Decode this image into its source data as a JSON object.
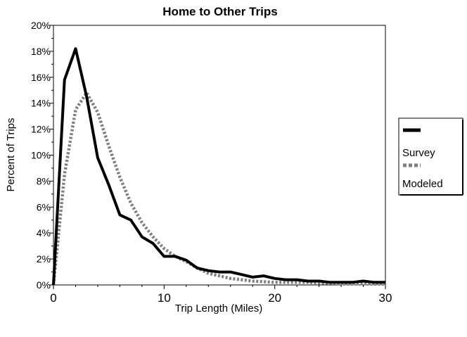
{
  "chart_data": {
    "type": "line",
    "title": "Home to Other Trips",
    "xlabel": "Trip Length (Miles)",
    "ylabel": "Percent of Trips",
    "xlim": [
      0,
      30
    ],
    "ylim": [
      0,
      20
    ],
    "x_ticks": [
      0,
      10,
      20,
      30
    ],
    "x_tick_labels": [
      "0",
      "10",
      "20",
      "30"
    ],
    "y_ticks": [
      0,
      2,
      4,
      6,
      8,
      10,
      12,
      14,
      16,
      18,
      20
    ],
    "y_tick_labels": [
      "0%",
      "2%",
      "4%",
      "6%",
      "8%",
      "10%",
      "12%",
      "14%",
      "16%",
      "18%",
      "20%"
    ],
    "grid": false,
    "legend_position": "right",
    "series": [
      {
        "name": "Survey",
        "style": "solid",
        "color": "#000000",
        "x": [
          0,
          1,
          2,
          3,
          4,
          5,
          6,
          7,
          8,
          9,
          10,
          11,
          12,
          13,
          14,
          15,
          16,
          17,
          18,
          19,
          20,
          21,
          22,
          23,
          24,
          25,
          26,
          27,
          28,
          29,
          30
        ],
        "values": [
          0,
          15.8,
          18.2,
          14.5,
          9.8,
          7.7,
          5.4,
          5.0,
          3.7,
          3.2,
          2.2,
          2.2,
          1.9,
          1.3,
          1.1,
          1.0,
          1.0,
          0.8,
          0.6,
          0.7,
          0.5,
          0.4,
          0.4,
          0.3,
          0.3,
          0.2,
          0.2,
          0.2,
          0.3,
          0.2,
          0.2
        ]
      },
      {
        "name": "Modeled",
        "style": "dotted",
        "color": "#7f7f7f",
        "x": [
          0,
          1,
          2,
          3,
          4,
          5,
          6,
          7,
          8,
          9,
          10,
          11,
          12,
          13,
          14,
          15,
          16,
          17,
          18,
          19,
          20,
          21,
          22,
          23,
          24,
          25,
          26,
          27,
          28,
          29,
          30
        ],
        "values": [
          0,
          8.5,
          13.5,
          14.8,
          13.3,
          10.7,
          8.3,
          6.3,
          4.8,
          3.7,
          2.8,
          2.2,
          1.8,
          1.3,
          0.9,
          0.7,
          0.5,
          0.4,
          0.3,
          0.25,
          0.2,
          0.2,
          0.2,
          0.2,
          0.15,
          0.15,
          0.1,
          0.1,
          0.1,
          0.1,
          0.1
        ]
      }
    ]
  }
}
